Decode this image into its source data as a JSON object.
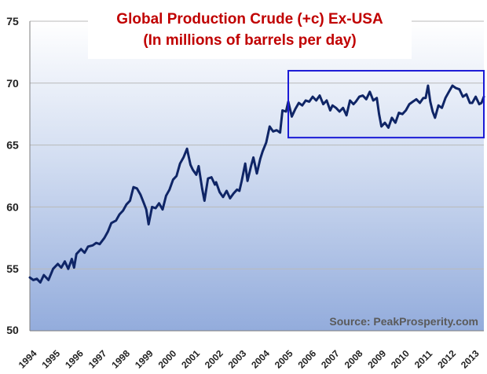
{
  "chart_data": {
    "type": "line",
    "title": "Global Production Crude (+c) Ex-USA",
    "subtitle": "(In millions of barrels per day)",
    "source": "Source: PeakProsperity.com",
    "ylim": [
      50,
      75
    ],
    "xlim": [
      1994,
      2013.5
    ],
    "grid": true,
    "y_ticks": [
      "50",
      "55",
      "60",
      "65",
      "70",
      "75"
    ],
    "x_ticks": [
      "1994",
      "1995",
      "1996",
      "1997",
      "1998",
      "1999",
      "2000",
      "2001",
      "2002",
      "2003",
      "2004",
      "2005",
      "2006",
      "2007",
      "2008",
      "2009",
      "2010",
      "2011",
      "2012",
      "2013"
    ],
    "highlight_box": {
      "x": [
        2005.1,
        2013.5
      ],
      "y": [
        65.6,
        71.0
      ]
    },
    "series": [
      {
        "points": [
          [
            1994.0,
            54.3
          ],
          [
            1994.15,
            54.1
          ],
          [
            1994.3,
            54.2
          ],
          [
            1994.45,
            53.9
          ],
          [
            1994.6,
            54.5
          ],
          [
            1994.8,
            54.1
          ],
          [
            1995.0,
            55.0
          ],
          [
            1995.2,
            55.4
          ],
          [
            1995.35,
            55.1
          ],
          [
            1995.5,
            55.6
          ],
          [
            1995.65,
            55.0
          ],
          [
            1995.8,
            55.8
          ],
          [
            1995.9,
            55.1
          ],
          [
            1996.0,
            56.2
          ],
          [
            1996.2,
            56.6
          ],
          [
            1996.35,
            56.3
          ],
          [
            1996.5,
            56.8
          ],
          [
            1996.7,
            56.9
          ],
          [
            1996.85,
            57.1
          ],
          [
            1997.0,
            57.0
          ],
          [
            1997.2,
            57.5
          ],
          [
            1997.35,
            58.0
          ],
          [
            1997.5,
            58.7
          ],
          [
            1997.7,
            58.9
          ],
          [
            1997.85,
            59.4
          ],
          [
            1998.0,
            59.7
          ],
          [
            1998.15,
            60.2
          ],
          [
            1998.3,
            60.5
          ],
          [
            1998.45,
            61.6
          ],
          [
            1998.6,
            61.5
          ],
          [
            1998.75,
            61.0
          ],
          [
            1998.9,
            60.3
          ],
          [
            1999.0,
            59.8
          ],
          [
            1999.1,
            58.6
          ],
          [
            1999.25,
            60.0
          ],
          [
            1999.4,
            59.9
          ],
          [
            1999.55,
            60.3
          ],
          [
            1999.7,
            59.8
          ],
          [
            1999.85,
            60.9
          ],
          [
            2000.0,
            61.4
          ],
          [
            2000.15,
            62.2
          ],
          [
            2000.3,
            62.5
          ],
          [
            2000.45,
            63.5
          ],
          [
            2000.6,
            64.0
          ],
          [
            2000.75,
            64.7
          ],
          [
            2000.9,
            63.4
          ],
          [
            2001.0,
            63.0
          ],
          [
            2001.15,
            62.6
          ],
          [
            2001.25,
            63.3
          ],
          [
            2001.4,
            61.5
          ],
          [
            2001.5,
            60.5
          ],
          [
            2001.65,
            62.3
          ],
          [
            2001.8,
            62.4
          ],
          [
            2001.95,
            61.8
          ],
          [
            2002.0,
            62.0
          ],
          [
            2002.15,
            61.2
          ],
          [
            2002.3,
            60.8
          ],
          [
            2002.45,
            61.3
          ],
          [
            2002.6,
            60.7
          ],
          [
            2002.75,
            61.1
          ],
          [
            2002.9,
            61.4
          ],
          [
            2003.0,
            61.3
          ],
          [
            2003.1,
            62.1
          ],
          [
            2003.25,
            63.5
          ],
          [
            2003.35,
            62.1
          ],
          [
            2003.5,
            63.3
          ],
          [
            2003.6,
            64.0
          ],
          [
            2003.75,
            62.7
          ],
          [
            2003.9,
            63.9
          ],
          [
            2004.0,
            64.5
          ],
          [
            2004.15,
            65.2
          ],
          [
            2004.3,
            66.5
          ],
          [
            2004.45,
            66.1
          ],
          [
            2004.6,
            66.2
          ],
          [
            2004.75,
            66.0
          ],
          [
            2004.85,
            67.8
          ],
          [
            2005.0,
            67.7
          ],
          [
            2005.1,
            68.5
          ],
          [
            2005.25,
            67.3
          ],
          [
            2005.4,
            67.9
          ],
          [
            2005.55,
            68.4
          ],
          [
            2005.7,
            68.2
          ],
          [
            2005.85,
            68.6
          ],
          [
            2006.0,
            68.5
          ],
          [
            2006.15,
            68.9
          ],
          [
            2006.3,
            68.6
          ],
          [
            2006.45,
            69.0
          ],
          [
            2006.6,
            68.3
          ],
          [
            2006.75,
            68.6
          ],
          [
            2006.9,
            67.8
          ],
          [
            2007.0,
            68.2
          ],
          [
            2007.15,
            68.0
          ],
          [
            2007.3,
            67.7
          ],
          [
            2007.45,
            68.0
          ],
          [
            2007.6,
            67.4
          ],
          [
            2007.75,
            68.6
          ],
          [
            2007.9,
            68.3
          ],
          [
            2008.0,
            68.5
          ],
          [
            2008.15,
            68.9
          ],
          [
            2008.3,
            69.0
          ],
          [
            2008.45,
            68.7
          ],
          [
            2008.6,
            69.3
          ],
          [
            2008.75,
            68.6
          ],
          [
            2008.9,
            68.8
          ],
          [
            2009.0,
            67.5
          ],
          [
            2009.1,
            66.5
          ],
          [
            2009.25,
            66.8
          ],
          [
            2009.4,
            66.4
          ],
          [
            2009.55,
            67.2
          ],
          [
            2009.7,
            66.8
          ],
          [
            2009.85,
            67.6
          ],
          [
            2010.0,
            67.5
          ],
          [
            2010.15,
            67.8
          ],
          [
            2010.3,
            68.3
          ],
          [
            2010.45,
            68.5
          ],
          [
            2010.6,
            68.7
          ],
          [
            2010.75,
            68.4
          ],
          [
            2010.9,
            68.8
          ],
          [
            2011.0,
            68.8
          ],
          [
            2011.1,
            69.8
          ],
          [
            2011.2,
            68.5
          ],
          [
            2011.3,
            67.7
          ],
          [
            2011.4,
            67.2
          ],
          [
            2011.55,
            68.2
          ],
          [
            2011.7,
            68.0
          ],
          [
            2011.85,
            68.8
          ],
          [
            2012.0,
            69.3
          ],
          [
            2012.15,
            69.8
          ],
          [
            2012.3,
            69.6
          ],
          [
            2012.45,
            69.5
          ],
          [
            2012.6,
            68.9
          ],
          [
            2012.75,
            69.1
          ],
          [
            2012.9,
            68.4
          ],
          [
            2013.0,
            68.4
          ],
          [
            2013.15,
            68.9
          ],
          [
            2013.3,
            68.3
          ],
          [
            2013.4,
            68.4
          ],
          [
            2013.5,
            68.9
          ]
        ]
      }
    ]
  }
}
